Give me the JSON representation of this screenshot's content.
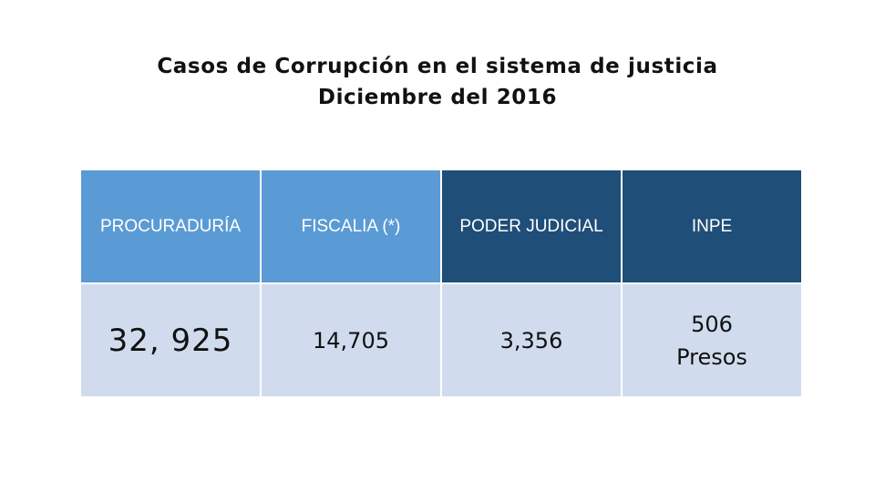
{
  "title": {
    "line1": "Casos de Corrupción en el sistema de justicia",
    "line2": "Diciembre del 2016"
  },
  "table": {
    "headers": [
      "PROCURADURÍA",
      "FISCALIA (*)",
      "PODER JUDICIAL",
      "INPE"
    ],
    "values": [
      "32, 925",
      "14,705",
      "3,356",
      "506"
    ],
    "inpe_suffix": "Presos"
  },
  "colors": {
    "header_light": "#5b9bd5",
    "header_dark": "#1f4e79",
    "cell_background": "#d0dcee"
  }
}
